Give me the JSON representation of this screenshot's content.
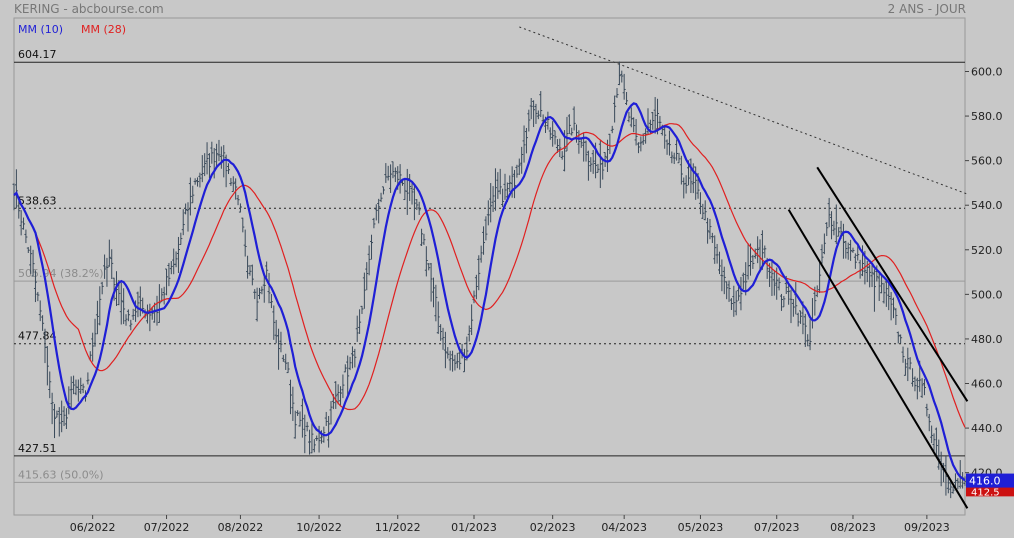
{
  "header": {
    "title": "KERING - abcbourse.com",
    "period": "2 ANS - JOUR"
  },
  "legend": [
    {
      "label": "MM (10)",
      "color": "#1f1fd6"
    },
    {
      "label": "MM (28)",
      "color": "#e02020"
    }
  ],
  "colors": {
    "background": "#c8c8c8",
    "price": "#3a4a5a",
    "mm10": "#1f1fd6",
    "mm28": "#e02020",
    "last_price_box": "#1f1fd6",
    "mm28_box": "#cc1111"
  },
  "levels": [
    {
      "value": 604.17,
      "label": "604.17",
      "style": "solid"
    },
    {
      "value": 538.63,
      "label": "538.63",
      "style": "dotted"
    },
    {
      "value": 505.94,
      "label": "505.94 (38.2%)",
      "style": "solid-faint"
    },
    {
      "value": 477.84,
      "label": "477.84",
      "style": "dotted"
    },
    {
      "value": 427.51,
      "label": "427.51",
      "style": "solid"
    },
    {
      "value": 415.63,
      "label": "415.63 (50.0%)",
      "style": "solid-faint"
    }
  ],
  "tags": {
    "last_price": "416.0",
    "mm28_value": "412.5"
  },
  "chart_data": {
    "type": "line",
    "title": "KERING",
    "ylim": [
      401,
      624
    ],
    "y_ticks": [
      420,
      440,
      460,
      480,
      500,
      520,
      540,
      560,
      580,
      600
    ],
    "x_labels": [
      "06/2022",
      "07/2022",
      "08/2022",
      "10/2022",
      "11/2022",
      "01/2023",
      "02/2023",
      "04/2023",
      "05/2023",
      "07/2023",
      "08/2023",
      "09/2023"
    ],
    "x_label_index": [
      33,
      64,
      95,
      128,
      161,
      193,
      226,
      256,
      288,
      320,
      352,
      383
    ],
    "n_sessions": 400,
    "grid": false,
    "price_anchors": [
      [
        0,
        548
      ],
      [
        4,
        530
      ],
      [
        8,
        512
      ],
      [
        13,
        478
      ],
      [
        16,
        450
      ],
      [
        20,
        440
      ],
      [
        25,
        458
      ],
      [
        30,
        455
      ],
      [
        33,
        478
      ],
      [
        37,
        505
      ],
      [
        40,
        515
      ],
      [
        44,
        500
      ],
      [
        48,
        488
      ],
      [
        52,
        495
      ],
      [
        56,
        492
      ],
      [
        60,
        493
      ],
      [
        64,
        505
      ],
      [
        68,
        515
      ],
      [
        72,
        535
      ],
      [
        76,
        550
      ],
      [
        82,
        560
      ],
      [
        86,
        565
      ],
      [
        90,
        555
      ],
      [
        94,
        545
      ],
      [
        98,
        510
      ],
      [
        102,
        500
      ],
      [
        106,
        510
      ],
      [
        110,
        480
      ],
      [
        114,
        470
      ],
      [
        118,
        445
      ],
      [
        122,
        440
      ],
      [
        126,
        432
      ],
      [
        130,
        440
      ],
      [
        134,
        450
      ],
      [
        138,
        462
      ],
      [
        142,
        470
      ],
      [
        146,
        490
      ],
      [
        150,
        525
      ],
      [
        154,
        545
      ],
      [
        158,
        555
      ],
      [
        162,
        552
      ],
      [
        166,
        545
      ],
      [
        170,
        535
      ],
      [
        174,
        512
      ],
      [
        178,
        490
      ],
      [
        182,
        472
      ],
      [
        186,
        468
      ],
      [
        190,
        476
      ],
      [
        194,
        505
      ],
      [
        198,
        530
      ],
      [
        202,
        545
      ],
      [
        206,
        545
      ],
      [
        210,
        552
      ],
      [
        214,
        570
      ],
      [
        218,
        585
      ],
      [
        222,
        580
      ],
      [
        226,
        570
      ],
      [
        230,
        565
      ],
      [
        234,
        575
      ],
      [
        238,
        570
      ],
      [
        242,
        560
      ],
      [
        246,
        555
      ],
      [
        250,
        570
      ],
      [
        254,
        600
      ],
      [
        258,
        580
      ],
      [
        262,
        565
      ],
      [
        266,
        575
      ],
      [
        270,
        580
      ],
      [
        274,
        565
      ],
      [
        278,
        560
      ],
      [
        282,
        550
      ],
      [
        286,
        548
      ],
      [
        290,
        535
      ],
      [
        294,
        520
      ],
      [
        298,
        505
      ],
      [
        302,
        495
      ],
      [
        306,
        505
      ],
      [
        310,
        515
      ],
      [
        314,
        520
      ],
      [
        318,
        510
      ],
      [
        322,
        500
      ],
      [
        326,
        500
      ],
      [
        330,
        488
      ],
      [
        334,
        480
      ],
      [
        338,
        508
      ],
      [
        342,
        535
      ],
      [
        346,
        530
      ],
      [
        350,
        520
      ],
      [
        354,
        515
      ],
      [
        358,
        510
      ],
      [
        362,
        505
      ],
      [
        366,
        500
      ],
      [
        370,
        488
      ],
      [
        374,
        470
      ],
      [
        378,
        462
      ],
      [
        382,
        455
      ],
      [
        386,
        435
      ],
      [
        390,
        422
      ],
      [
        394,
        415
      ],
      [
        396,
        416
      ]
    ],
    "series": [
      {
        "name": "MM (10)",
        "last_value": 416.0
      },
      {
        "name": "MM (28)",
        "last_value": 412.5
      }
    ],
    "trendlines": [
      {
        "style": "dotted",
        "from": [
          212,
          620
        ],
        "to": [
          400,
          545
        ]
      },
      {
        "style": "solid",
        "from": [
          337,
          557
        ],
        "to": [
          400,
          452
        ]
      },
      {
        "style": "solid",
        "from": [
          325,
          538
        ],
        "to": [
          400,
          404
        ]
      }
    ]
  }
}
